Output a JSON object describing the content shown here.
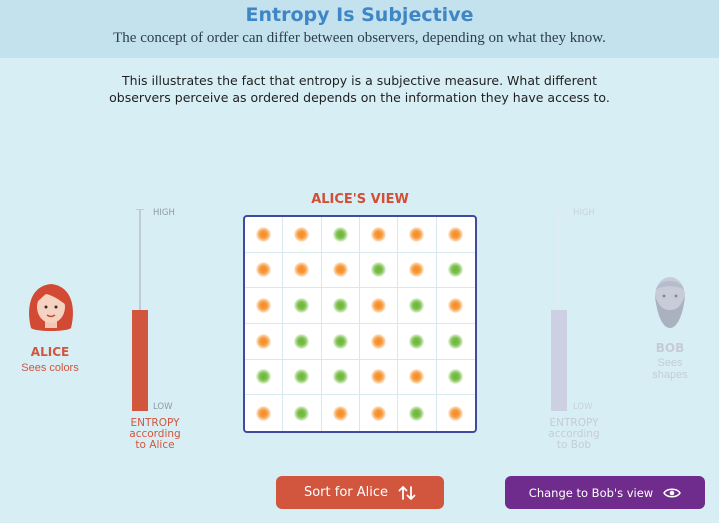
{
  "header": {
    "title": "Entropy Is Subjective",
    "subtitle": "The concept of order can differ between observers, depending on what they know."
  },
  "description": {
    "line1": "This illustrates the fact that entropy is a subjective measure. What different",
    "line2": "observers perceive as ordered depends on the information they have access to."
  },
  "alice": {
    "name": "ALICE",
    "caption": "Sees colors",
    "color": "#d2553d",
    "entropy_level": 0.5,
    "meter": {
      "high": "HIGH",
      "low": "LOW"
    },
    "entropy_label": {
      "line1": "ENTROPY",
      "line2": "according",
      "line3": "to Alice"
    }
  },
  "bob": {
    "name": "BOB",
    "caption_line1": "Sees",
    "caption_line2": "shapes",
    "color": "#c9cde0",
    "entropy_level": 0.5,
    "meter": {
      "high": "HIGH",
      "low": "LOW"
    },
    "entropy_label": {
      "line1": "ENTROPY",
      "line2": "according",
      "line3": "to Bob"
    }
  },
  "grid": {
    "title": "ALICE'S VIEW",
    "rows": [
      [
        "orange",
        "orange",
        "green",
        "orange",
        "orange",
        "orange"
      ],
      [
        "orange",
        "orange",
        "orange",
        "green",
        "orange",
        "green"
      ],
      [
        "orange",
        "green",
        "green",
        "orange",
        "green",
        "orange"
      ],
      [
        "orange",
        "green",
        "green",
        "orange",
        "green",
        "green"
      ],
      [
        "green",
        "green",
        "green",
        "orange",
        "orange",
        "green"
      ],
      [
        "orange",
        "green",
        "orange",
        "orange",
        "green",
        "orange"
      ]
    ]
  },
  "buttons": {
    "sort": {
      "label": "Sort for Alice",
      "icon": "sort-arrows-icon"
    },
    "change": {
      "label": "Change to Bob's view",
      "icon": "eye-icon"
    }
  },
  "colors": {
    "accent_blue": "#3f86c6",
    "alice_red": "#d2553d",
    "bob_purple": "#6f2c8c",
    "dot_orange": "#f48a22",
    "dot_green": "#6bb33a"
  }
}
